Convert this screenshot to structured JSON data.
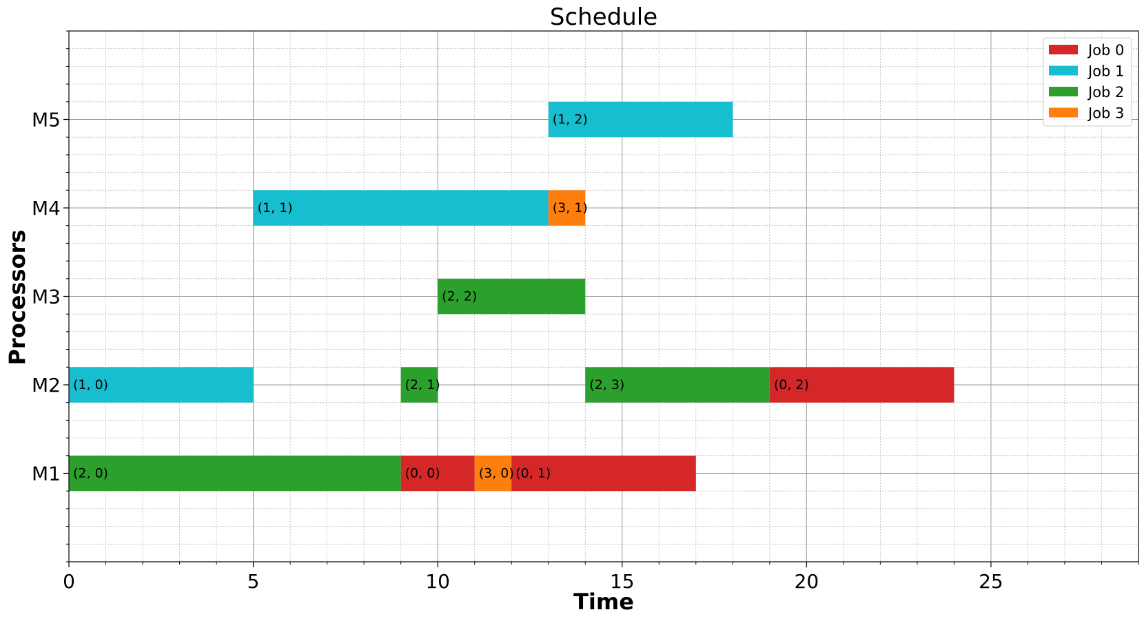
{
  "chart_data": {
    "type": "gantt",
    "title": "Schedule",
    "xlabel": "Time",
    "ylabel": "Processors",
    "xlim": [
      0,
      29
    ],
    "ylim": [
      0,
      6
    ],
    "x_major_ticks": [
      0,
      5,
      10,
      15,
      20,
      25
    ],
    "x_minor_step": 1,
    "y_minor_step": 0.2,
    "grid": true,
    "legend_position": "top-right",
    "processors": [
      {
        "label": "M1",
        "y": 1
      },
      {
        "label": "M2",
        "y": 2
      },
      {
        "label": "M3",
        "y": 3
      },
      {
        "label": "M4",
        "y": 4
      },
      {
        "label": "M5",
        "y": 5
      }
    ],
    "jobs": [
      {
        "name": "Job 0",
        "color": "#d62728"
      },
      {
        "name": "Job 1",
        "color": "#17becf"
      },
      {
        "name": "Job 2",
        "color": "#2ca02c"
      },
      {
        "name": "Job 3",
        "color": "#ff7f0e"
      }
    ],
    "tasks": [
      {
        "processor": "M1",
        "job": 2,
        "start": 0,
        "end": 9,
        "label": "(2, 0)"
      },
      {
        "processor": "M1",
        "job": 0,
        "start": 9,
        "end": 11,
        "label": "(0, 0)"
      },
      {
        "processor": "M1",
        "job": 3,
        "start": 11,
        "end": 12,
        "label": "(3, 0)"
      },
      {
        "processor": "M1",
        "job": 0,
        "start": 12,
        "end": 17,
        "label": "(0, 1)"
      },
      {
        "processor": "M2",
        "job": 1,
        "start": 0,
        "end": 5,
        "label": "(1, 0)"
      },
      {
        "processor": "M2",
        "job": 2,
        "start": 9,
        "end": 10,
        "label": "(2, 1)"
      },
      {
        "processor": "M2",
        "job": 2,
        "start": 14,
        "end": 19,
        "label": "(2, 3)"
      },
      {
        "processor": "M2",
        "job": 0,
        "start": 19,
        "end": 24,
        "label": "(0, 2)"
      },
      {
        "processor": "M3",
        "job": 2,
        "start": 10,
        "end": 14,
        "label": "(2, 2)"
      },
      {
        "processor": "M4",
        "job": 1,
        "start": 5,
        "end": 13,
        "label": "(1, 1)"
      },
      {
        "processor": "M4",
        "job": 3,
        "start": 13,
        "end": 14,
        "label": "(3, 1)"
      },
      {
        "processor": "M5",
        "job": 1,
        "start": 13,
        "end": 18,
        "label": "(1, 2)"
      }
    ]
  }
}
